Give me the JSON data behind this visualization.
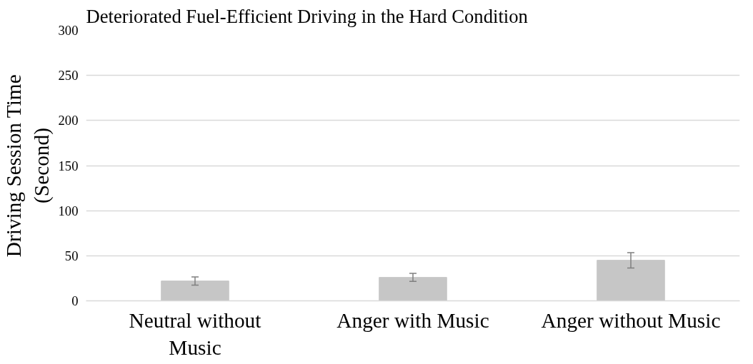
{
  "chart_data": {
    "type": "bar",
    "title": "Deteriorated Fuel-Efficient Driving in the Hard Condition",
    "ylabel": "Driving Session Time\n(Second)",
    "categories": [
      "Neutral without\nMusic",
      "Anger with Music",
      "Anger without Music"
    ],
    "values": [
      22,
      26,
      45
    ],
    "errors": [
      4.5,
      4.5,
      8.5
    ],
    "color": "#c6c6c6",
    "ylim": [
      0,
      300
    ],
    "yticks": [
      0,
      50,
      100,
      150,
      200,
      250,
      300
    ],
    "grid": "y"
  }
}
